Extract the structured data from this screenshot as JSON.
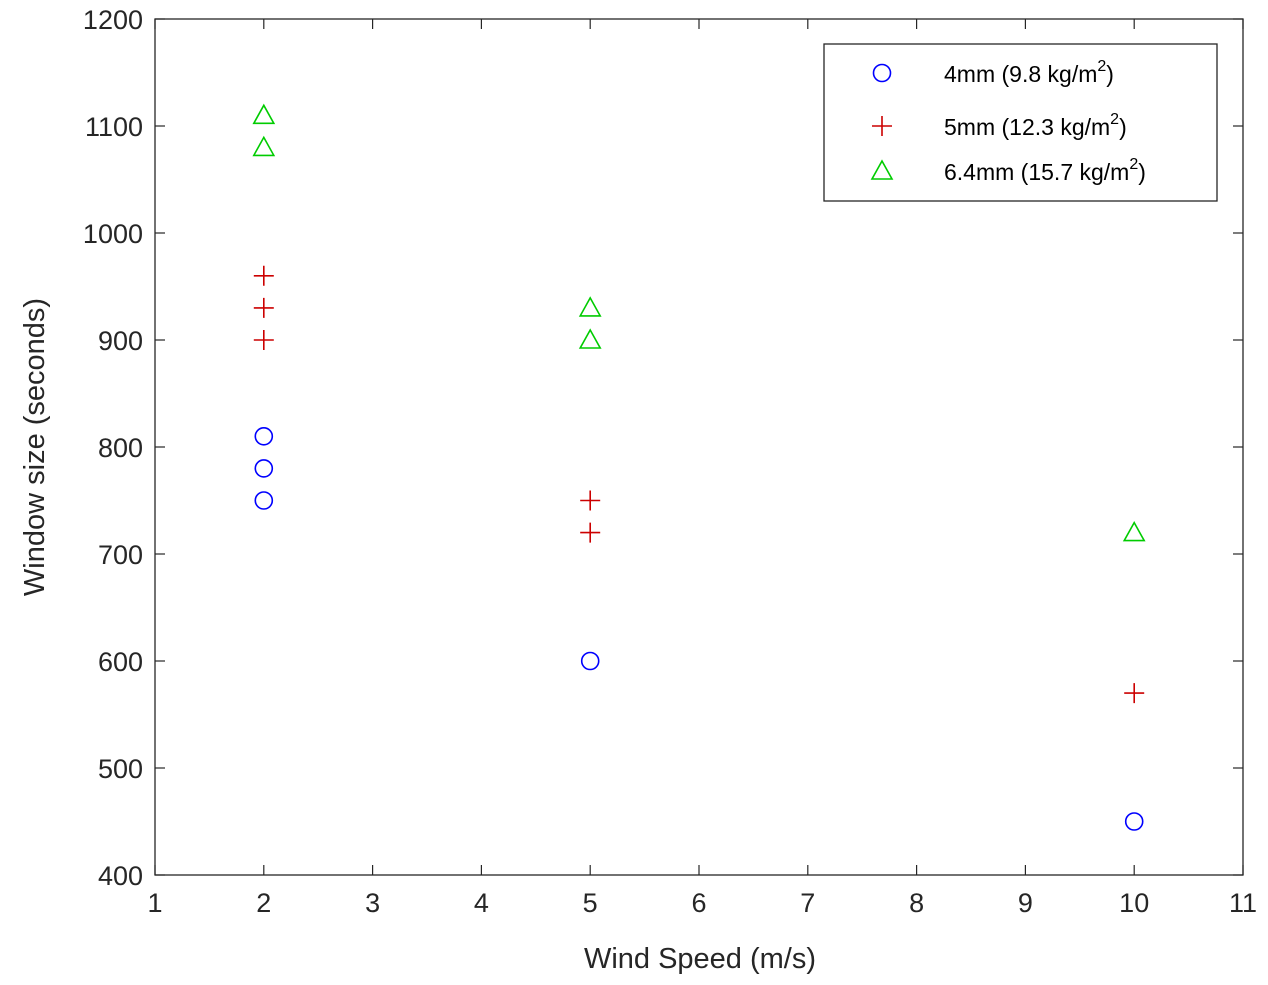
{
  "chart_data": {
    "type": "scatter",
    "title": "",
    "xlabel": "Wind Speed (m/s)",
    "ylabel": "Window size (seconds)",
    "xlim": [
      1,
      11
    ],
    "ylim": [
      400,
      1200
    ],
    "xticks": [
      1,
      2,
      3,
      4,
      5,
      6,
      7,
      8,
      9,
      10,
      11
    ],
    "yticks": [
      400,
      500,
      600,
      700,
      800,
      900,
      1000,
      1100,
      1200
    ],
    "grid": false,
    "legend_position": "top-right",
    "series": [
      {
        "name_main": "4mm (9.8 kg/m",
        "name_sup": "2",
        "name_tail": ")",
        "marker": "circle",
        "color": "#0000ff",
        "points": [
          {
            "x": 2,
            "y": 810
          },
          {
            "x": 2,
            "y": 780
          },
          {
            "x": 2,
            "y": 750
          },
          {
            "x": 5,
            "y": 600
          },
          {
            "x": 10,
            "y": 450
          }
        ]
      },
      {
        "name_main": "5mm (12.3 kg/m",
        "name_sup": "2",
        "name_tail": ")",
        "marker": "plus",
        "color": "#cc0000",
        "points": [
          {
            "x": 2,
            "y": 960
          },
          {
            "x": 2,
            "y": 930
          },
          {
            "x": 2,
            "y": 900
          },
          {
            "x": 5,
            "y": 750
          },
          {
            "x": 5,
            "y": 720
          },
          {
            "x": 10,
            "y": 570
          }
        ]
      },
      {
        "name_main": "6.4mm (15.7 kg/m",
        "name_sup": "2",
        "name_tail": ")",
        "marker": "triangle",
        "color": "#00cc00",
        "points": [
          {
            "x": 2,
            "y": 1110
          },
          {
            "x": 2,
            "y": 1080
          },
          {
            "x": 5,
            "y": 930
          },
          {
            "x": 5,
            "y": 900
          },
          {
            "x": 10,
            "y": 720
          }
        ]
      }
    ]
  }
}
